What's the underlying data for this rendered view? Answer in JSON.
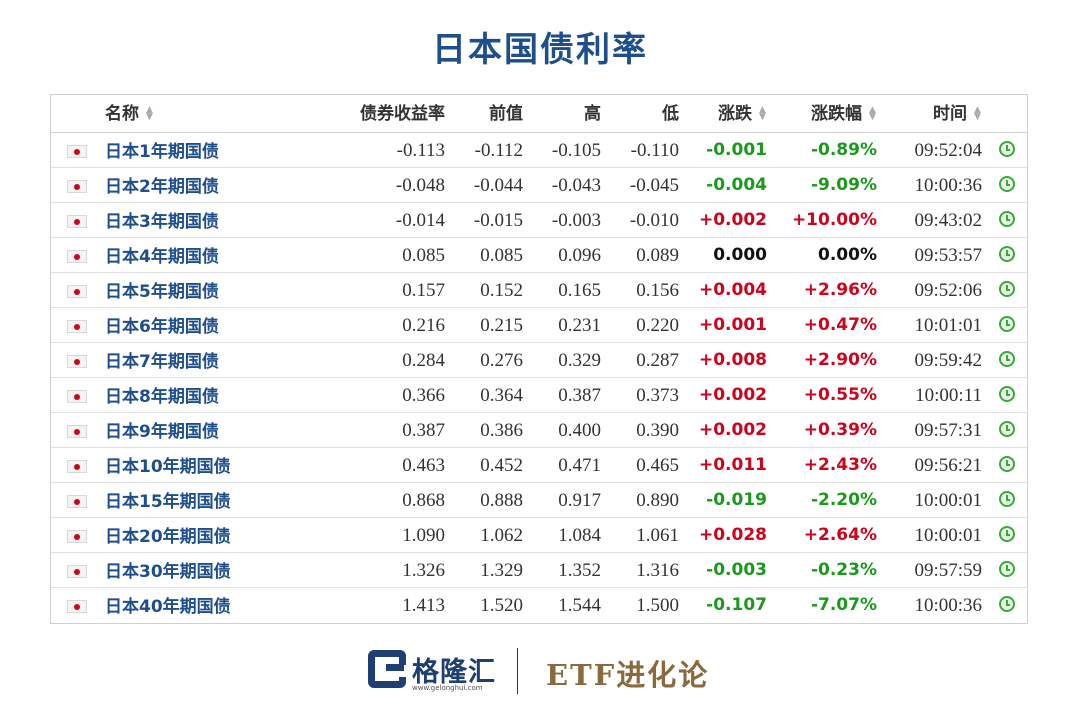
{
  "title": "日本国债利率",
  "table": {
    "headers": {
      "name": "名称",
      "yield": "债券收益率",
      "prev": "前值",
      "high": "高",
      "low": "低",
      "chg": "涨跌",
      "pct": "涨跌幅",
      "time": "时间"
    },
    "rows": [
      {
        "name": "日本1年期国债",
        "yield": "-0.113",
        "prev": "-0.112",
        "high": "-0.105",
        "low": "-0.110",
        "chg": "-0.001",
        "pct": "-0.89%",
        "time": "09:52:04",
        "dir": "down"
      },
      {
        "name": "日本2年期国债",
        "yield": "-0.048",
        "prev": "-0.044",
        "high": "-0.043",
        "low": "-0.045",
        "chg": "-0.004",
        "pct": "-9.09%",
        "time": "10:00:36",
        "dir": "down"
      },
      {
        "name": "日本3年期国债",
        "yield": "-0.014",
        "prev": "-0.015",
        "high": "-0.003",
        "low": "-0.010",
        "chg": "+0.002",
        "pct": "+10.00%",
        "time": "09:43:02",
        "dir": "up"
      },
      {
        "name": "日本4年期国债",
        "yield": "0.085",
        "prev": "0.085",
        "high": "0.096",
        "low": "0.089",
        "chg": "0.000",
        "pct": "0.00%",
        "time": "09:53:57",
        "dir": "flat"
      },
      {
        "name": "日本5年期国债",
        "yield": "0.157",
        "prev": "0.152",
        "high": "0.165",
        "low": "0.156",
        "chg": "+0.004",
        "pct": "+2.96%",
        "time": "09:52:06",
        "dir": "up"
      },
      {
        "name": "日本6年期国债",
        "yield": "0.216",
        "prev": "0.215",
        "high": "0.231",
        "low": "0.220",
        "chg": "+0.001",
        "pct": "+0.47%",
        "time": "10:01:01",
        "dir": "up"
      },
      {
        "name": "日本7年期国债",
        "yield": "0.284",
        "prev": "0.276",
        "high": "0.329",
        "low": "0.287",
        "chg": "+0.008",
        "pct": "+2.90%",
        "time": "09:59:42",
        "dir": "up"
      },
      {
        "name": "日本8年期国债",
        "yield": "0.366",
        "prev": "0.364",
        "high": "0.387",
        "low": "0.373",
        "chg": "+0.002",
        "pct": "+0.55%",
        "time": "10:00:11",
        "dir": "up"
      },
      {
        "name": "日本9年期国债",
        "yield": "0.387",
        "prev": "0.386",
        "high": "0.400",
        "low": "0.390",
        "chg": "+0.002",
        "pct": "+0.39%",
        "time": "09:57:31",
        "dir": "up"
      },
      {
        "name": "日本10年期国债",
        "yield": "0.463",
        "prev": "0.452",
        "high": "0.471",
        "low": "0.465",
        "chg": "+0.011",
        "pct": "+2.43%",
        "time": "09:56:21",
        "dir": "up"
      },
      {
        "name": "日本15年期国债",
        "yield": "0.868",
        "prev": "0.888",
        "high": "0.917",
        "low": "0.890",
        "chg": "-0.019",
        "pct": "-2.20%",
        "time": "10:00:01",
        "dir": "down"
      },
      {
        "name": "日本20年期国债",
        "yield": "1.090",
        "prev": "1.062",
        "high": "1.084",
        "low": "1.061",
        "chg": "+0.028",
        "pct": "+2.64%",
        "time": "10:00:01",
        "dir": "up"
      },
      {
        "name": "日本30年期国债",
        "yield": "1.326",
        "prev": "1.329",
        "high": "1.352",
        "low": "1.316",
        "chg": "-0.003",
        "pct": "-0.23%",
        "time": "09:57:59",
        "dir": "down"
      },
      {
        "name": "日本40年期国债",
        "yield": "1.413",
        "prev": "1.520",
        "high": "1.544",
        "low": "1.500",
        "chg": "-0.107",
        "pct": "-7.07%",
        "time": "10:00:36",
        "dir": "down"
      }
    ]
  },
  "icons": {
    "flag": "japan-flag-icon",
    "clock": "clock-icon",
    "sort": "sort-arrows-icon"
  },
  "colors": {
    "up": "#d0021b",
    "down": "#1a9a1a",
    "link": "#1e4e8c",
    "brand": "#1e3f73",
    "etf": "#8a6a3c"
  },
  "footer": {
    "brand_cn": "格隆汇",
    "brand_url": "www.gelonghui.com",
    "etf_label": "ETF进化论"
  }
}
